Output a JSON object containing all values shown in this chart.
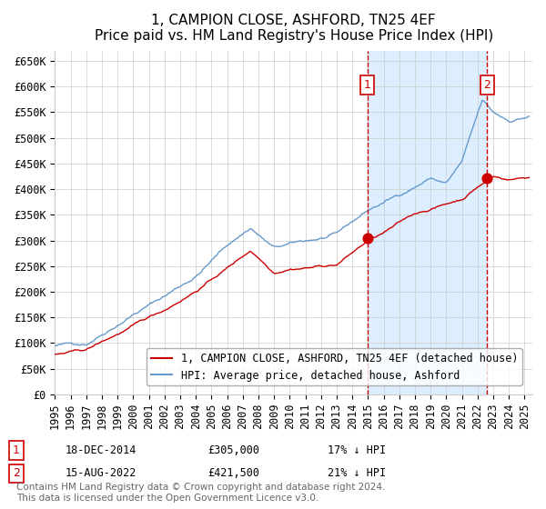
{
  "title": "1, CAMPION CLOSE, ASHFORD, TN25 4EF",
  "subtitle": "Price paid vs. HM Land Registry's House Price Index (HPI)",
  "ylabel_ticks": [
    "£0",
    "£50K",
    "£100K",
    "£150K",
    "£200K",
    "£250K",
    "£300K",
    "£350K",
    "£400K",
    "£450K",
    "£500K",
    "£550K",
    "£600K",
    "£650K"
  ],
  "ylim": [
    0,
    670000
  ],
  "xlim_start": 1995.0,
  "xlim_end": 2025.5,
  "xticks": [
    1995,
    1996,
    1997,
    1998,
    1999,
    2000,
    2001,
    2002,
    2003,
    2004,
    2005,
    2006,
    2007,
    2008,
    2009,
    2010,
    2011,
    2012,
    2013,
    2014,
    2015,
    2016,
    2017,
    2018,
    2019,
    2020,
    2021,
    2022,
    2023,
    2024,
    2025
  ],
  "sale1_year": 2014.96,
  "sale1_price": 305000,
  "sale1_label": "1",
  "sale1_date": "18-DEC-2014",
  "sale1_hpi_pct": "17% ↓ HPI",
  "sale2_year": 2022.62,
  "sale2_price": 421500,
  "sale2_label": "2",
  "sale2_date": "15-AUG-2022",
  "sale2_hpi_pct": "21% ↓ HPI",
  "hpi_color": "#6699cc",
  "property_color": "#cc0000",
  "vline_color": "#cc0000",
  "shade_color": "#ddeeff",
  "grid_color": "#cccccc",
  "bg_color": "#ffffff",
  "legend_label_property": "1, CAMPION CLOSE, ASHFORD, TN25 4EF (detached house)",
  "legend_label_hpi": "HPI: Average price, detached house, Ashford",
  "footer": "Contains HM Land Registry data © Crown copyright and database right 2024.\nThis data is licensed under the Open Government Licence v3.0.",
  "title_fontsize": 11,
  "subtitle_fontsize": 10,
  "tick_fontsize": 8.5,
  "legend_fontsize": 8.5,
  "footer_fontsize": 7.5
}
